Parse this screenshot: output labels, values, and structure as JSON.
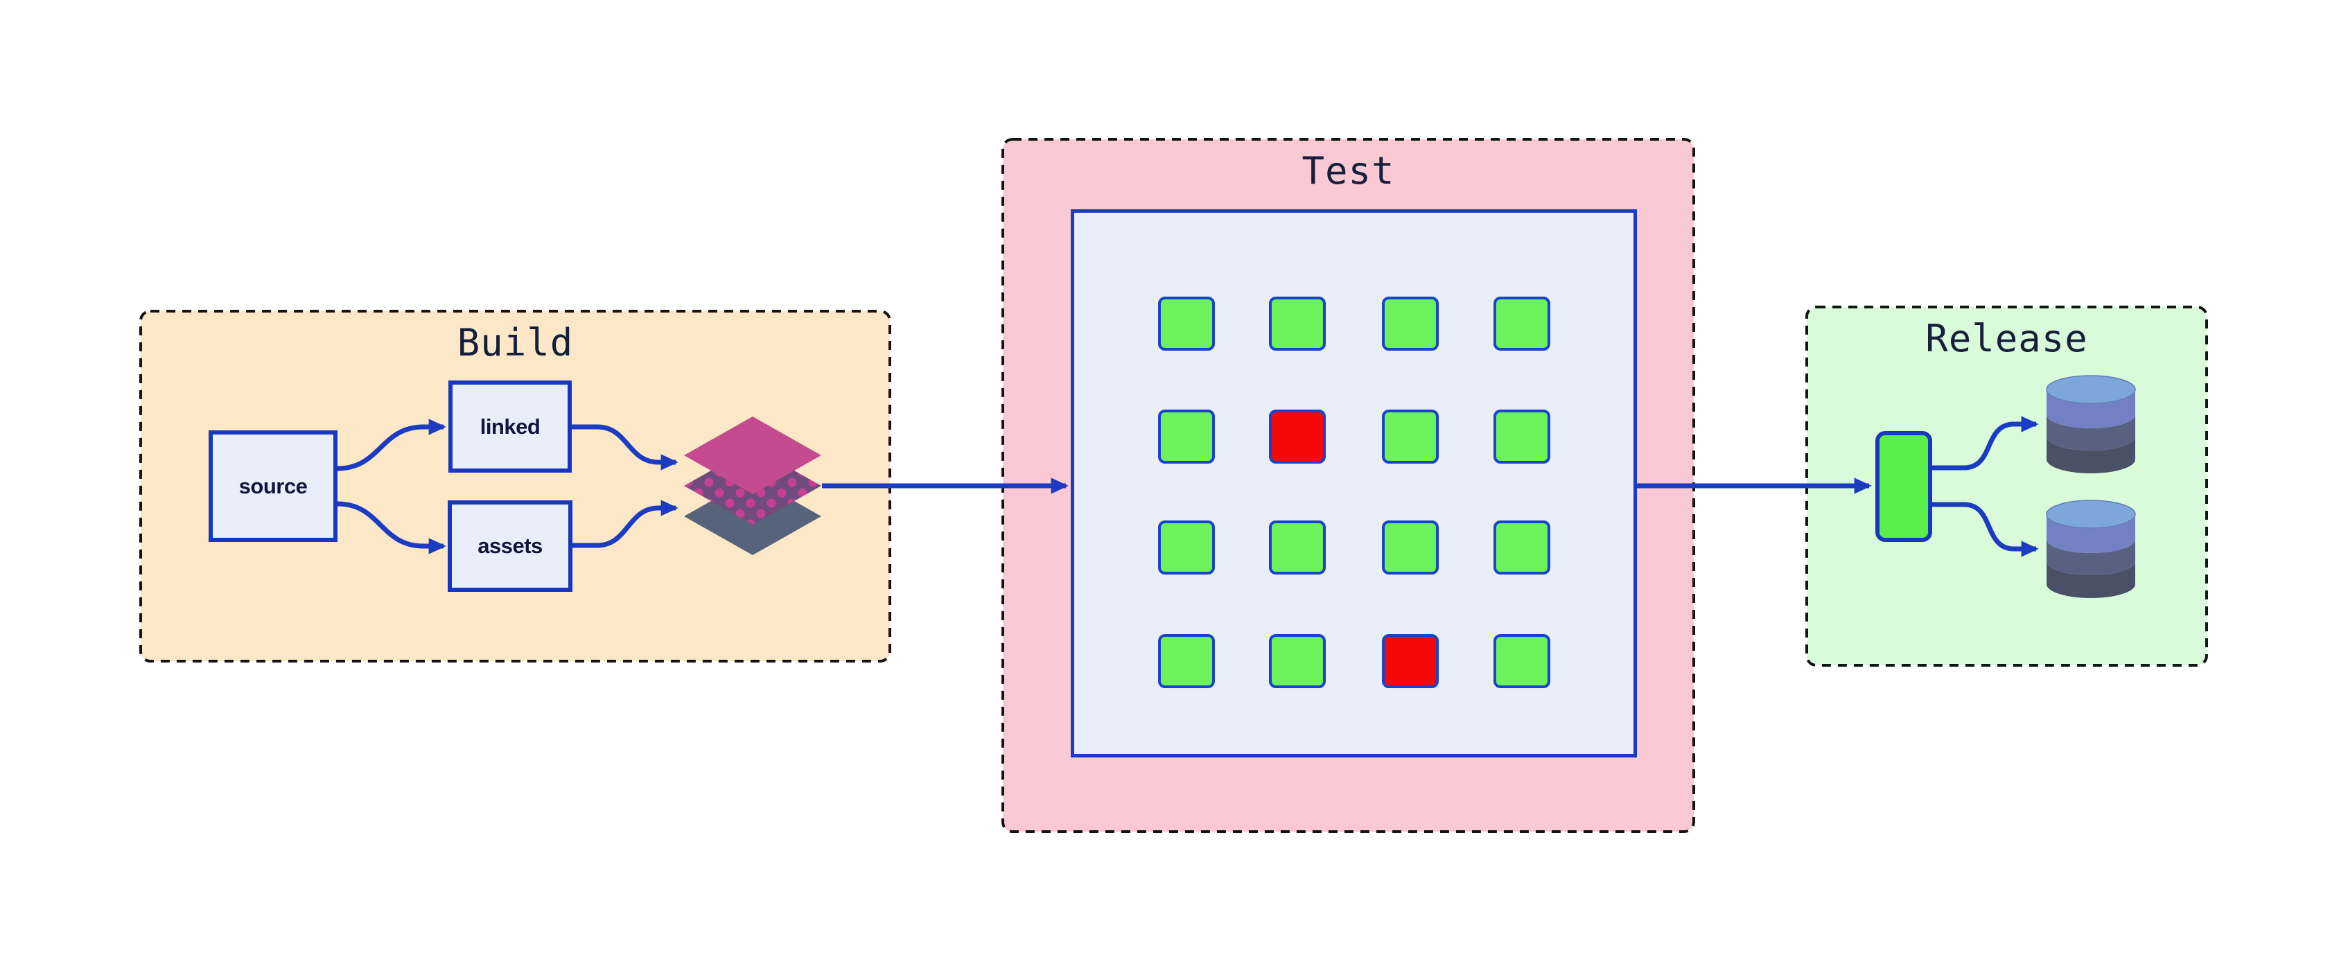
{
  "diagram": {
    "canvas_bg": "#ffffff",
    "connector_color": "#1b3bc2",
    "node_border_color": "#1738be",
    "node_fill": "#e9eefb",
    "outline_color": "#141414",
    "title_color": "#151f3c",
    "sections": {
      "build": {
        "title": "Build",
        "bg": "#fce8c6",
        "nodes": {
          "source": {
            "label": "source"
          },
          "linked": {
            "label": "linked"
          },
          "assets": {
            "label": "assets"
          }
        },
        "artifact_icon": "layer-stack-icon",
        "layer_colors": {
          "top": "#c44b90",
          "middle": "#6f4c7d",
          "middle_dots": "#c53f94",
          "bottom": "#57627b"
        }
      },
      "test": {
        "title": "Test",
        "bg": "#fbc9d3",
        "panel_fill": "#e9eefb",
        "grid": {
          "rows": 4,
          "cols": 4,
          "pass_color": "#6cf35b",
          "fail_color": "#f50808",
          "cell_border_color": "#1a44c8",
          "statuses": [
            [
              "pass",
              "pass",
              "pass",
              "pass"
            ],
            [
              "pass",
              "fail",
              "pass",
              "pass"
            ],
            [
              "pass",
              "pass",
              "pass",
              "pass"
            ],
            [
              "pass",
              "pass",
              "fail",
              "pass"
            ]
          ]
        }
      },
      "release": {
        "title": "Release",
        "bg": "#d9fbda",
        "artifact_color": "#5bef4b",
        "database_icon_count": 2,
        "database_colors": {
          "top": "#7da7db",
          "upper": "#7381c4",
          "lower": "#596183",
          "bottom": "#4a5066"
        }
      }
    }
  }
}
